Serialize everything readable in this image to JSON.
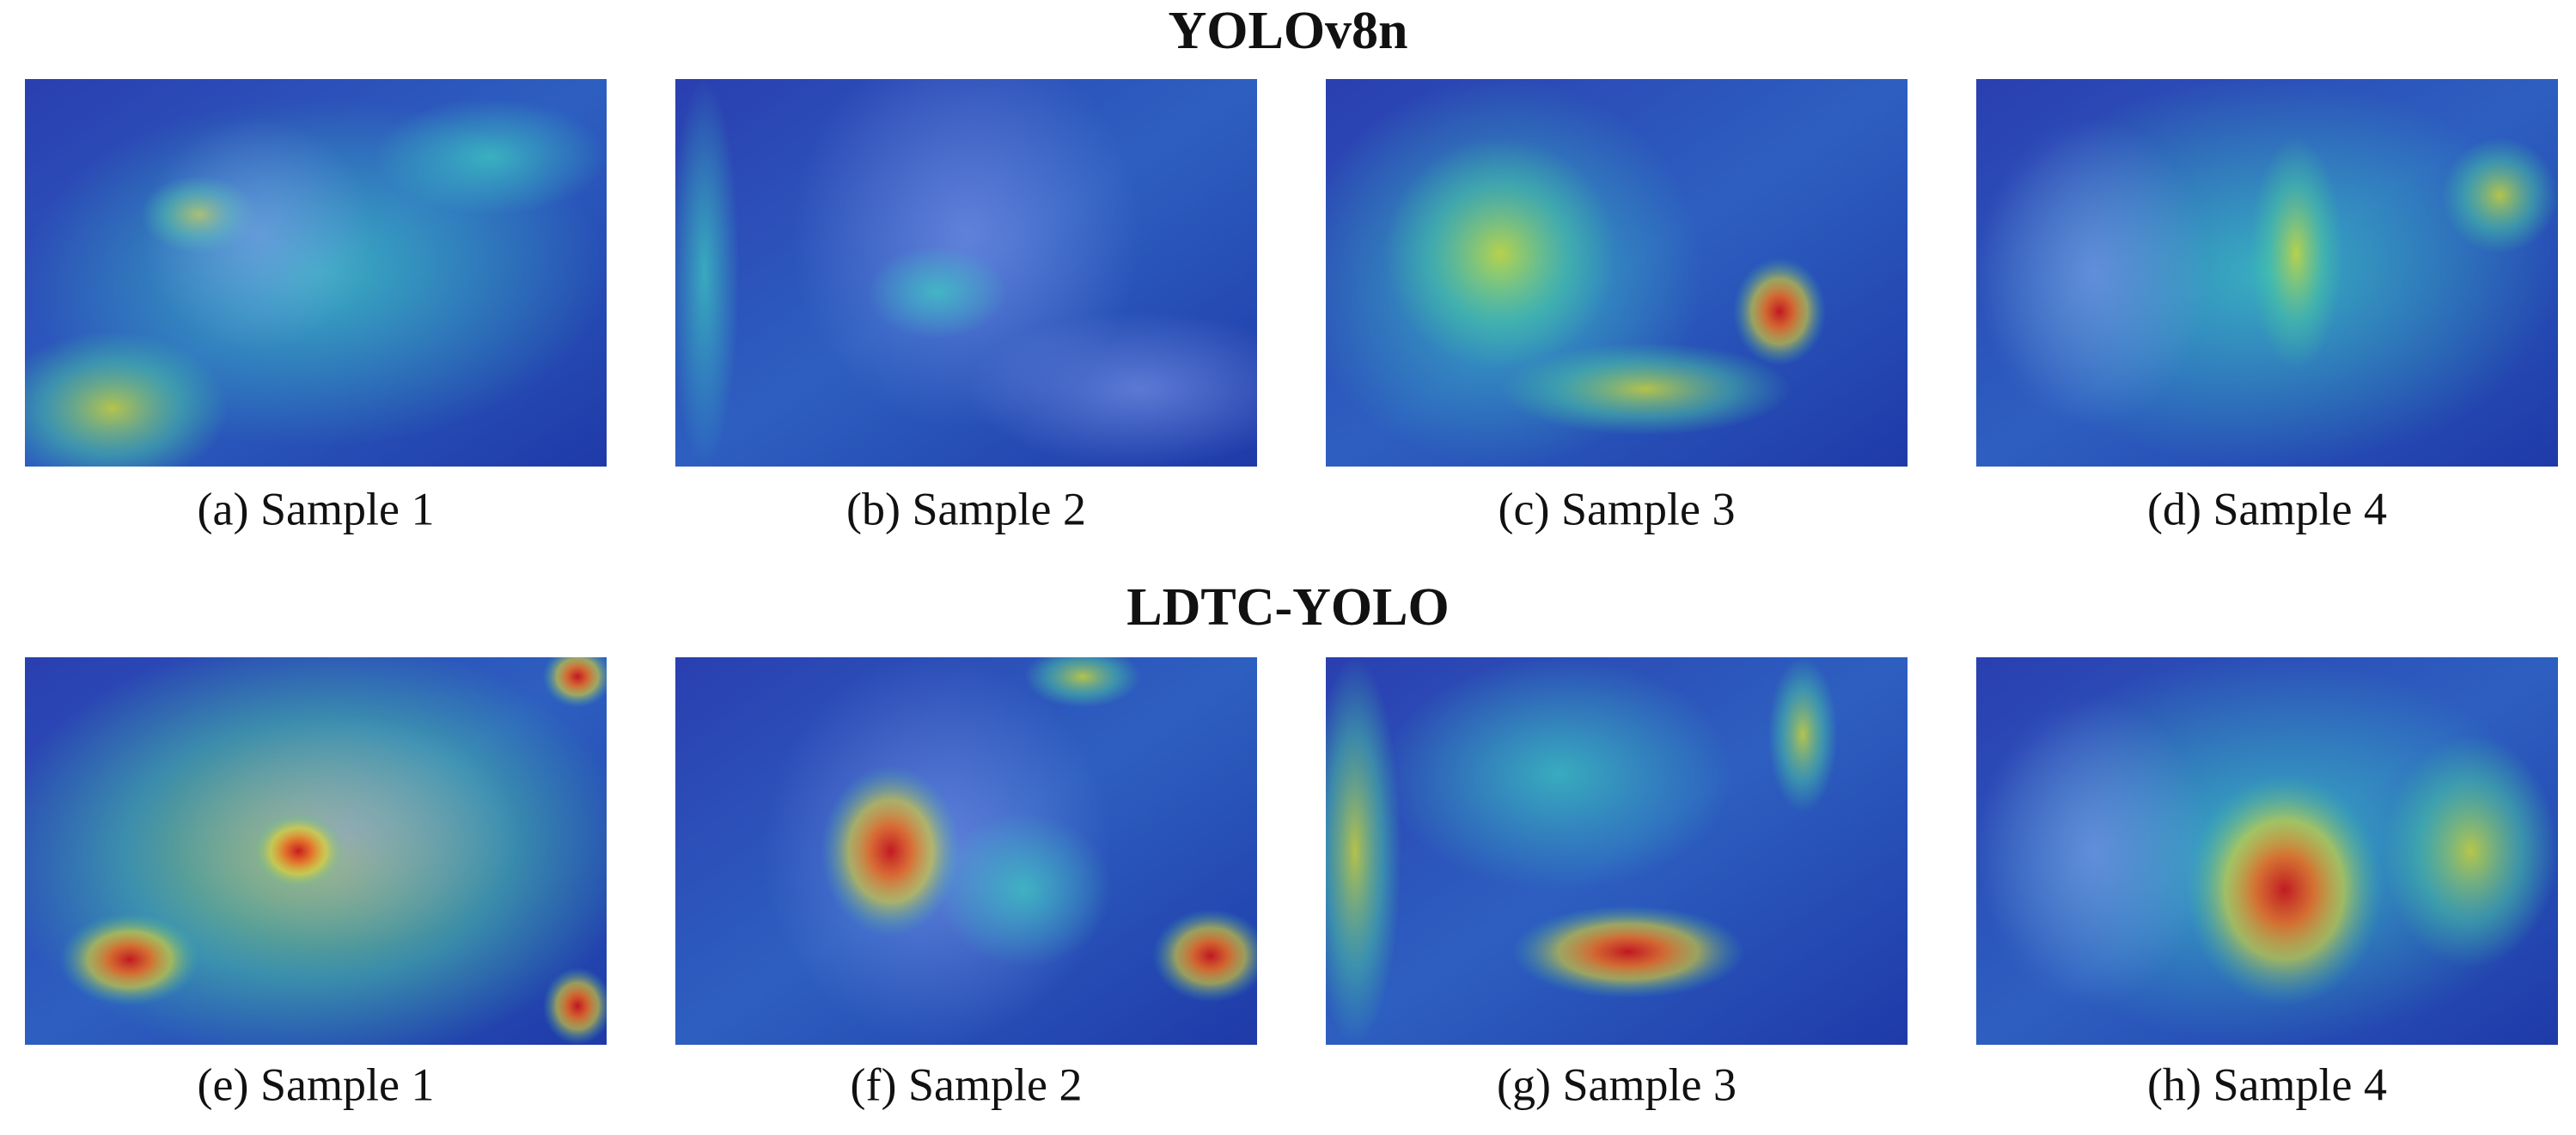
{
  "rows": [
    {
      "title": "YOLOv8n",
      "panels": [
        {
          "caption": "(a) Sample 1"
        },
        {
          "caption": "(b) Sample 2"
        },
        {
          "caption": "(c) Sample 3"
        },
        {
          "caption": "(d) Sample 4"
        }
      ]
    },
    {
      "title": "LDTC-YOLO",
      "panels": [
        {
          "caption": "(e) Sample 1"
        },
        {
          "caption": "(f) Sample 2"
        },
        {
          "caption": "(g) Sample 3"
        },
        {
          "caption": "(h) Sample 4"
        }
      ]
    }
  ]
}
